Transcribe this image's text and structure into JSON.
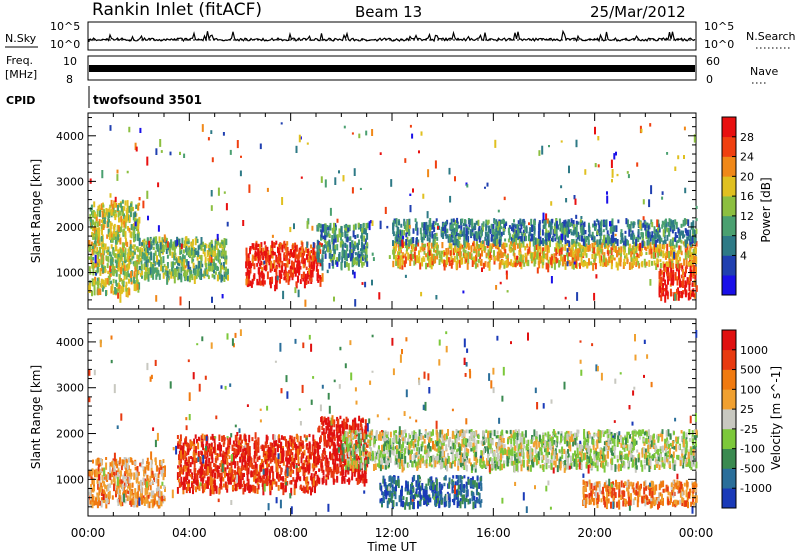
{
  "header": {
    "station": "Rankin Inlet (fitACF)",
    "beam": "Beam 13",
    "date": "25/Mar/2012"
  },
  "top_panels": {
    "nsky_label": "N.Sky",
    "nsky_ticks": [
      "10^5",
      "10^0"
    ],
    "nsearch_label": "N.Search",
    "nsearch_ticks": [
      "10^5",
      "10^0"
    ],
    "freq_label": "Freq.",
    "freq_unit": "[MHz]",
    "freq_ticks": [
      "10",
      "8"
    ],
    "nave_label": "Nave",
    "nave_ticks": [
      "60",
      "0"
    ],
    "cpid_label": "CPID",
    "cpid_text": "twofsound 3501"
  },
  "chart_data": [
    {
      "type": "heatmap",
      "name": "power",
      "ylabel": "Slant Range [km]",
      "ylim": [
        200,
        4500
      ],
      "yticks": [
        1000,
        2000,
        3000,
        4000
      ],
      "xlim": [
        0,
        24
      ],
      "colorbar": {
        "label": "Power [dB]",
        "ticks": [
          "28",
          "24",
          "20",
          "16",
          "12",
          "8",
          "4"
        ],
        "colors": [
          "#1a10e8",
          "#2040b0",
          "#2e7a86",
          "#4aa070",
          "#8cbf40",
          "#e0c020",
          "#f08818",
          "#f04010",
          "#e81010"
        ]
      },
      "bands": [
        {
          "t0": 0.0,
          "t1": 2.0,
          "r0": 600,
          "r1": 2600,
          "level": 0.55
        },
        {
          "t0": 2.0,
          "t1": 5.5,
          "r0": 900,
          "r1": 1800,
          "level": 0.45
        },
        {
          "t0": 6.2,
          "t1": 9.2,
          "r0": 800,
          "r1": 1700,
          "level": 0.92
        },
        {
          "t0": 9.0,
          "t1": 11.0,
          "r0": 1200,
          "r1": 2100,
          "level": 0.35
        },
        {
          "t0": 12.0,
          "t1": 24.0,
          "r0": 1200,
          "r1": 1700,
          "level": 0.65
        },
        {
          "t0": 12.0,
          "t1": 24.0,
          "r0": 1700,
          "r1": 2200,
          "level": 0.3
        },
        {
          "t0": 22.5,
          "t1": 24.0,
          "r0": 500,
          "r1": 1200,
          "level": 0.9
        }
      ]
    },
    {
      "type": "heatmap",
      "name": "velocity",
      "ylabel": "Slant Range [km]",
      "ylim": [
        200,
        4500
      ],
      "yticks": [
        1000,
        2000,
        3000,
        4000
      ],
      "xlim": [
        0,
        24
      ],
      "xlabel": "Time UT",
      "xticks": [
        "00:00",
        "04:00",
        "08:00",
        "12:00",
        "16:00",
        "20:00",
        "00:00"
      ],
      "colorbar": {
        "label": "Velocity [m s^-1]",
        "ticks": [
          "1000",
          "500",
          "100",
          "25",
          "-25",
          "-100",
          "-500",
          "-1000"
        ],
        "colors": [
          "#1a3ab8",
          "#2a6e9a",
          "#3a8a50",
          "#7cc83a",
          "#c8c8c0",
          "#f0a030",
          "#f07a10",
          "#e83a10",
          "#e01010"
        ]
      },
      "bands": [
        {
          "t0": 0.0,
          "t1": 3.0,
          "r0": 500,
          "r1": 1500,
          "level": 0.65
        },
        {
          "t0": 3.5,
          "t1": 9.0,
          "r0": 800,
          "r1": 2000,
          "level": 0.88
        },
        {
          "t0": 9.0,
          "t1": 11.0,
          "r0": 1000,
          "r1": 2400,
          "level": 0.95
        },
        {
          "t0": 11.5,
          "t1": 15.5,
          "r0": 500,
          "r1": 1100,
          "level": 0.15
        },
        {
          "t0": 10.0,
          "t1": 24.0,
          "r0": 1300,
          "r1": 2100,
          "level": 0.45
        },
        {
          "t0": 19.5,
          "t1": 24.0,
          "r0": 500,
          "r1": 1000,
          "level": 0.7
        }
      ]
    }
  ]
}
